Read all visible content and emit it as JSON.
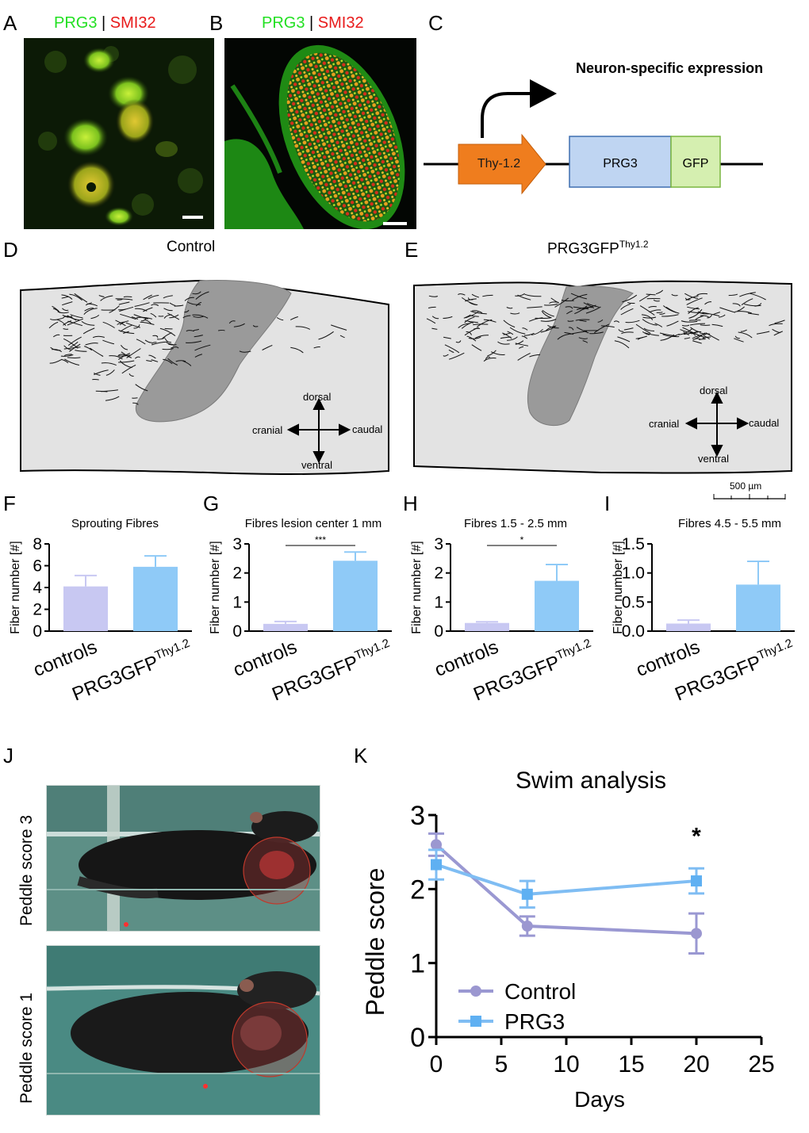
{
  "panels": {
    "A": "A",
    "B": "B",
    "C": "C",
    "D": "D",
    "E": "E",
    "F": "F",
    "G": "G",
    "H": "H",
    "I": "I",
    "J": "J",
    "K": "K"
  },
  "stain": {
    "prg3": "PRG3",
    "sep": "|",
    "smi32": "SMI32"
  },
  "construct": {
    "title": "Neuron-specific expression",
    "promoter": "Thy-1.2",
    "gene": "PRG3",
    "tag": "GFP"
  },
  "sections": {
    "control_title": "Control",
    "prg3_title_base": "PRG3GFP",
    "prg3_title_sup": "Thy1.2",
    "dir_dorsal": "dorsal",
    "dir_ventral": "ventral",
    "dir_cranial": "cranial",
    "dir_caudal": "caudal",
    "scale_label": "500 µm"
  },
  "colors": {
    "control": "#c8c8f2",
    "prg3": "#8fcaf7",
    "control_line": "#9a98d2",
    "prg3_line": "#7fbdf3",
    "lesion": "#9a9a9a",
    "tissue": "#e3e3e3",
    "ring": "#c0392b"
  },
  "chart_data": [
    {
      "type": "bar",
      "title": "Sprouting Fibres",
      "ylabel": "Fiber number [#]",
      "categories": [
        "controls",
        "PRG3GFPThy1.2"
      ],
      "category_labels": {
        "controls": "controls",
        "prg3_base": "PRG3GFP",
        "prg3_sup": "Thy1.2"
      },
      "values": [
        4.1,
        5.9
      ],
      "errors": [
        1.0,
        1.0
      ],
      "ylim": [
        0,
        8
      ],
      "yticks": [
        "0",
        "2",
        "4",
        "6",
        "8"
      ],
      "significance": ""
    },
    {
      "type": "bar",
      "title": "Fibres lesion center 1 mm",
      "ylabel": "Fiber number [#]",
      "categories": [
        "controls",
        "PRG3GFPThy1.2"
      ],
      "category_labels": {
        "controls": "controls",
        "prg3_base": "PRG3GFP",
        "prg3_sup": "Thy1.2"
      },
      "values": [
        0.25,
        2.42
      ],
      "errors": [
        0.08,
        0.3
      ],
      "ylim": [
        0,
        3
      ],
      "yticks": [
        "0",
        "1",
        "2",
        "3"
      ],
      "significance": "***"
    },
    {
      "type": "bar",
      "title": "Fibres 1.5 - 2.5 mm",
      "ylabel": "Fiber number [#]",
      "categories": [
        "controls",
        "PRG3GFPThy1.2"
      ],
      "category_labels": {
        "controls": "controls",
        "prg3_base": "PRG3GFP",
        "prg3_sup": "Thy1.2"
      },
      "values": [
        0.28,
        1.73
      ],
      "errors": [
        0.04,
        0.56
      ],
      "ylim": [
        0,
        3
      ],
      "yticks": [
        "0",
        "1",
        "2",
        "3"
      ],
      "significance": "*"
    },
    {
      "type": "bar",
      "title": "Fibres 4.5 - 5.5 mm",
      "ylabel": "Fiber number [#]",
      "categories": [
        "controls",
        "PRG3GFPThy1.2"
      ],
      "category_labels": {
        "controls": "controls",
        "prg3_base": "PRG3GFP",
        "prg3_sup": "Thy1.2"
      },
      "values": [
        0.13,
        0.8
      ],
      "errors": [
        0.06,
        0.4
      ],
      "ylim": [
        0,
        1.5
      ],
      "yticks": [
        "0.0",
        "0.5",
        "1.0",
        "1.5"
      ],
      "significance": ""
    },
    {
      "type": "line",
      "title": "Swim analysis",
      "xlabel": "Days",
      "ylabel": "Peddle score",
      "xlim": [
        0,
        25
      ],
      "ylim": [
        0,
        3
      ],
      "xticks": [
        "0",
        "5",
        "10",
        "15",
        "20",
        "25"
      ],
      "yticks": [
        "0",
        "1",
        "2",
        "3"
      ],
      "x": [
        0,
        7,
        20
      ],
      "series": [
        {
          "name": "Control",
          "values": [
            2.6,
            1.5,
            1.4
          ],
          "errors": [
            0.15,
            0.13,
            0.27
          ],
          "marker": "circle"
        },
        {
          "name": "PRG3",
          "values": [
            2.33,
            1.93,
            2.11
          ],
          "errors": [
            0.2,
            0.18,
            0.17
          ],
          "marker": "square"
        }
      ],
      "annotation": "*",
      "legend": "bottom-left"
    }
  ],
  "photos": {
    "top_label": "Peddle score 3",
    "bottom_label": "Peddle score 1"
  }
}
